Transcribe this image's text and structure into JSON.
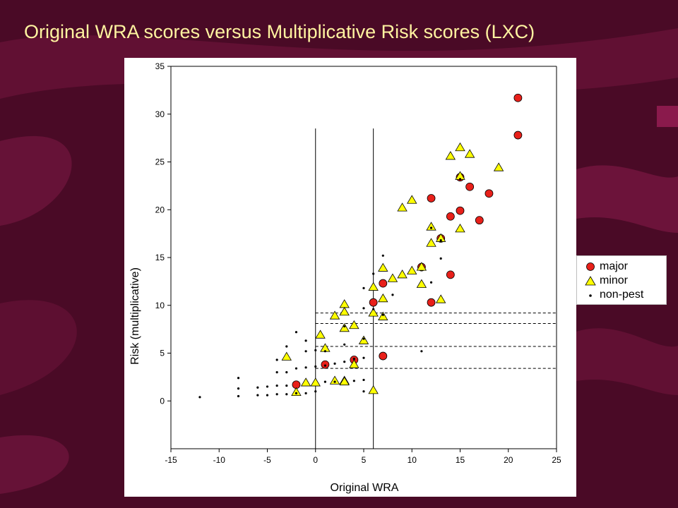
{
  "slide": {
    "title": "Original WRA scores versus Multiplicative Risk scores (LXC)"
  },
  "colors": {
    "background": "#4a0a26",
    "title": "#fff3a0",
    "major": "#e8201a",
    "minor": "#ffff00",
    "nonpest": "#000000"
  },
  "chart_data": {
    "type": "scatter",
    "title": "",
    "xlabel": "Original WRA",
    "ylabel": "Risk (multiplicative)",
    "xlim": [
      -15,
      25
    ],
    "ylim": [
      -5,
      35
    ],
    "xticks": [
      -15,
      -10,
      -5,
      0,
      5,
      10,
      15,
      20,
      25
    ],
    "yticks": [
      0,
      5,
      10,
      15,
      20,
      25,
      30,
      35
    ],
    "grid": false,
    "legend_position": "right",
    "vertical_lines": [
      0,
      6
    ],
    "horizontal_dashed_lines": [
      9.2,
      8.1,
      5.7,
      3.4
    ],
    "series": [
      {
        "name": "major",
        "marker": "circle",
        "points": [
          [
            21,
            31.7
          ],
          [
            21,
            27.8
          ],
          [
            15,
            23.4
          ],
          [
            16,
            22.4
          ],
          [
            12,
            21.2
          ],
          [
            18,
            21.7
          ],
          [
            15,
            19.9
          ],
          [
            14,
            19.3
          ],
          [
            17,
            18.9
          ],
          [
            13,
            17
          ],
          [
            11,
            14
          ],
          [
            14,
            13.2
          ],
          [
            7,
            12.3
          ],
          [
            6,
            10.3
          ],
          [
            12,
            10.3
          ],
          [
            7,
            4.7
          ],
          [
            4,
            4.3
          ],
          [
            1,
            3.8
          ],
          [
            -2,
            1.7
          ]
        ]
      },
      {
        "name": "minor",
        "marker": "triangle",
        "points": [
          [
            15,
            26.5
          ],
          [
            14,
            25.6
          ],
          [
            16,
            25.8
          ],
          [
            19,
            24.4
          ],
          [
            15,
            23.5
          ],
          [
            10,
            21
          ],
          [
            9,
            20.2
          ],
          [
            12,
            18.2
          ],
          [
            15,
            18
          ],
          [
            13,
            17
          ],
          [
            12,
            16.5
          ],
          [
            7,
            13.9
          ],
          [
            10,
            13.6
          ],
          [
            9,
            13.2
          ],
          [
            8,
            12.8
          ],
          [
            11,
            14
          ],
          [
            11,
            12.2
          ],
          [
            6,
            11.9
          ],
          [
            7,
            10.7
          ],
          [
            13,
            10.6
          ],
          [
            3,
            10.1
          ],
          [
            3,
            9.3
          ],
          [
            2,
            8.9
          ],
          [
            6,
            9.2
          ],
          [
            7,
            8.8
          ],
          [
            4,
            7.9
          ],
          [
            3,
            7.6
          ],
          [
            0.5,
            6.9
          ],
          [
            5,
            6.3
          ],
          [
            1,
            5.5
          ],
          [
            -3,
            4.6
          ],
          [
            4,
            3.8
          ],
          [
            -1,
            1.9
          ],
          [
            0,
            1.9
          ],
          [
            2,
            2.1
          ],
          [
            3,
            2.1
          ],
          [
            3,
            2
          ],
          [
            -2,
            0.9
          ],
          [
            6,
            1.1
          ]
        ]
      },
      {
        "name": "non-pest",
        "marker": "dot",
        "points": [
          [
            -12,
            0.4
          ],
          [
            -8,
            0.5
          ],
          [
            -8,
            1.3
          ],
          [
            -8,
            2.4
          ],
          [
            -6,
            0.6
          ],
          [
            -6,
            1.4
          ],
          [
            -5,
            0.6
          ],
          [
            -5,
            1.5
          ],
          [
            -4,
            0.7
          ],
          [
            -4,
            1.6
          ],
          [
            -4,
            3
          ],
          [
            -4,
            4.3
          ],
          [
            -3,
            0.7
          ],
          [
            -3,
            1.6
          ],
          [
            -3,
            3
          ],
          [
            -3,
            5.7
          ],
          [
            -2,
            0.8
          ],
          [
            -2,
            3.4
          ],
          [
            -2,
            7.2
          ],
          [
            -1,
            0.8
          ],
          [
            -1,
            3.5
          ],
          [
            -1,
            5.2
          ],
          [
            -1,
            6.3
          ],
          [
            0,
            1
          ],
          [
            0,
            3.6
          ],
          [
            0,
            5.3
          ],
          [
            1,
            2
          ],
          [
            1,
            3.7
          ],
          [
            1,
            5.2
          ],
          [
            2,
            2
          ],
          [
            2,
            3.9
          ],
          [
            3,
            4.1
          ],
          [
            3,
            5.9
          ],
          [
            3,
            7.8
          ],
          [
            4,
            2.1
          ],
          [
            4,
            4.4
          ],
          [
            5,
            1
          ],
          [
            5,
            2.2
          ],
          [
            5,
            4.5
          ],
          [
            5,
            6.5
          ],
          [
            5,
            9.7
          ],
          [
            5,
            11.8
          ],
          [
            6,
            9.6
          ],
          [
            6,
            13.3
          ],
          [
            7,
            15.2
          ],
          [
            7,
            9
          ],
          [
            8,
            11.1
          ],
          [
            11,
            5.2
          ],
          [
            12,
            12.4
          ],
          [
            12,
            18.1
          ],
          [
            13,
            14.9
          ],
          [
            13,
            16.8
          ],
          [
            15,
            23.2
          ]
        ]
      }
    ]
  },
  "legend": {
    "items": [
      {
        "label": "major"
      },
      {
        "label": "minor"
      },
      {
        "label": "non-pest"
      }
    ]
  }
}
